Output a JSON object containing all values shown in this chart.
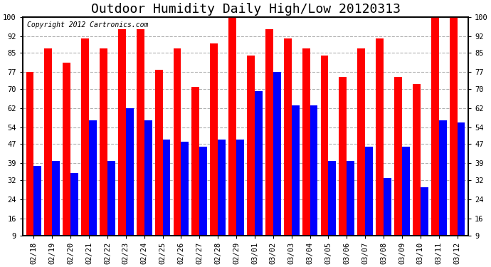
{
  "title": "Outdoor Humidity Daily High/Low 20120313",
  "copyright": "Copyright 2012 Cartronics.com",
  "dates": [
    "02/18",
    "02/19",
    "02/20",
    "02/21",
    "02/22",
    "02/23",
    "02/24",
    "02/25",
    "02/26",
    "02/27",
    "02/28",
    "02/29",
    "03/01",
    "03/02",
    "03/03",
    "03/04",
    "03/05",
    "03/06",
    "03/07",
    "03/08",
    "03/09",
    "03/10",
    "03/11",
    "03/12"
  ],
  "highs": [
    77,
    87,
    81,
    91,
    87,
    95,
    95,
    78,
    87,
    71,
    89,
    100,
    84,
    95,
    91,
    87,
    84,
    75,
    87,
    91,
    75,
    72,
    100,
    100
  ],
  "lows": [
    38,
    40,
    35,
    57,
    40,
    62,
    57,
    49,
    48,
    46,
    49,
    49,
    69,
    77,
    63,
    63,
    40,
    40,
    46,
    33,
    46,
    29,
    57,
    56
  ],
  "high_color": "#ff0000",
  "low_color": "#0000ff",
  "background_color": "#ffffff",
  "grid_color": "#b0b0b0",
  "yticks": [
    9,
    16,
    24,
    32,
    39,
    47,
    54,
    62,
    70,
    77,
    85,
    92,
    100
  ],
  "ymin": 9,
  "ymax": 100,
  "title_fontsize": 13,
  "tick_fontsize": 7.5,
  "copyright_fontsize": 7
}
